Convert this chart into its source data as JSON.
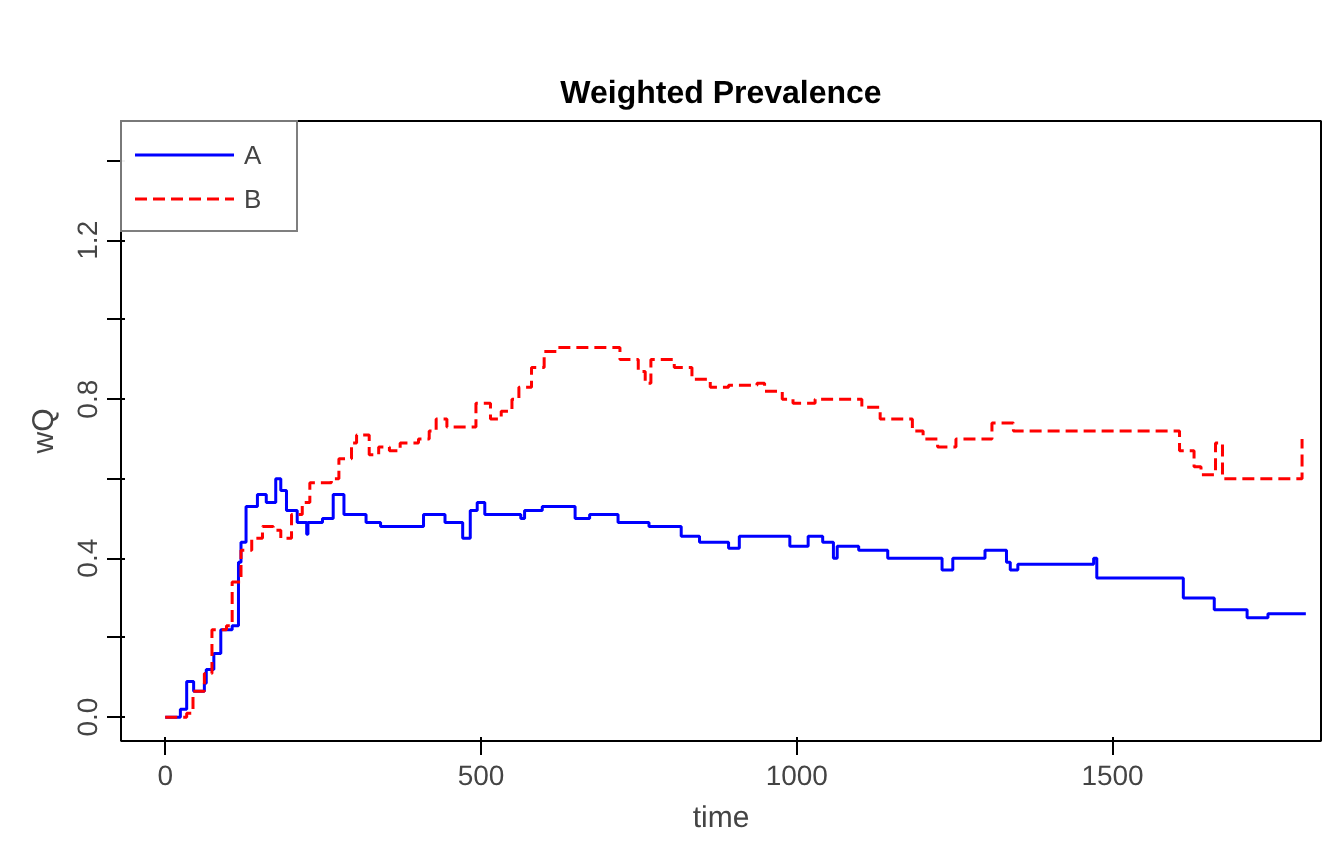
{
  "chart_data": {
    "type": "step",
    "title": "Weighted Prevalence",
    "xlabel": "time",
    "ylabel": "wQ",
    "xlim": [
      -70,
      1830
    ],
    "ylim": [
      -0.06,
      1.5
    ],
    "xticks": [
      0,
      500,
      1000,
      1500
    ],
    "yticks": [
      {
        "value": 0,
        "label": "0.0"
      },
      {
        "value": 0.2,
        "label": null
      },
      {
        "value": 0.4,
        "label": "0.4"
      },
      {
        "value": 0.6,
        "label": null
      },
      {
        "value": 0.8,
        "label": "0.8"
      },
      {
        "value": 1.0,
        "label": null
      },
      {
        "value": 1.2,
        "label": "1.2"
      },
      {
        "value": 1.4,
        "label": null
      }
    ],
    "grid": false,
    "legend": "top left",
    "marker": "none",
    "series": [
      {
        "name": "A",
        "color": "#0000ff",
        "line_style": "solid",
        "x": [
          0,
          24,
          34,
          45,
          62,
          65,
          77,
          88,
          106,
          116,
          120,
          128,
          146,
          160,
          175,
          183,
          192,
          209,
          224,
          226,
          249,
          266,
          283,
          318,
          341,
          386,
          409,
          443,
          471,
          483,
          494,
          506,
          563,
          569,
          597,
          649,
          672,
          717,
          737,
          766,
          817,
          846,
          892,
          909,
          989,
          1018,
          1041,
          1058,
          1064,
          1098,
          1144,
          1230,
          1247,
          1298,
          1332,
          1338,
          1350,
          1470,
          1475,
          1612,
          1661,
          1713,
          1746,
          1806
        ],
        "values": [
          0,
          0.02,
          0.09,
          0.065,
          0.085,
          0.12,
          0.16,
          0.22,
          0.23,
          0.39,
          0.44,
          0.53,
          0.56,
          0.54,
          0.6,
          0.57,
          0.52,
          0.49,
          0.46,
          0.49,
          0.5,
          0.56,
          0.51,
          0.49,
          0.48,
          0.48,
          0.51,
          0.49,
          0.45,
          0.52,
          0.54,
          0.51,
          0.5,
          0.52,
          0.53,
          0.5,
          0.51,
          0.49,
          0.49,
          0.48,
          0.455,
          0.44,
          0.425,
          0.455,
          0.43,
          0.455,
          0.44,
          0.4,
          0.43,
          0.42,
          0.4,
          0.37,
          0.4,
          0.42,
          0.39,
          0.37,
          0.385,
          0.4,
          0.35,
          0.3,
          0.27,
          0.25,
          0.26,
          0.26
        ]
      },
      {
        "name": "B",
        "color": "#ff0000",
        "line_style": "dashed",
        "x": [
          0,
          34,
          44,
          62,
          74,
          97,
          106,
          120,
          137,
          154,
          171,
          183,
          200,
          217,
          229,
          263,
          275,
          295,
          303,
          323,
          338,
          355,
          372,
          401,
          418,
          429,
          446,
          469,
          492,
          515,
          532,
          549,
          560,
          580,
          600,
          620,
          720,
          749,
          760,
          769,
          806,
          834,
          863,
          892,
          937,
          949,
          977,
          994,
          1029,
          1103,
          1132,
          1183,
          1200,
          1223,
          1252,
          1309,
          1343,
          1606,
          1629,
          1640,
          1663,
          1674,
          1800
        ],
        "values": [
          0,
          0.01,
          0.065,
          0.11,
          0.22,
          0.23,
          0.34,
          0.42,
          0.45,
          0.48,
          0.47,
          0.45,
          0.51,
          0.54,
          0.59,
          0.6,
          0.65,
          0.69,
          0.71,
          0.66,
          0.68,
          0.67,
          0.69,
          0.7,
          0.72,
          0.75,
          0.73,
          0.73,
          0.79,
          0.75,
          0.77,
          0.8,
          0.83,
          0.88,
          0.92,
          0.93,
          0.9,
          0.87,
          0.84,
          0.9,
          0.88,
          0.85,
          0.83,
          0.835,
          0.84,
          0.82,
          0.8,
          0.79,
          0.8,
          0.78,
          0.75,
          0.72,
          0.7,
          0.68,
          0.7,
          0.74,
          0.72,
          0.67,
          0.63,
          0.61,
          0.69,
          0.6,
          0.7
        ]
      }
    ]
  }
}
